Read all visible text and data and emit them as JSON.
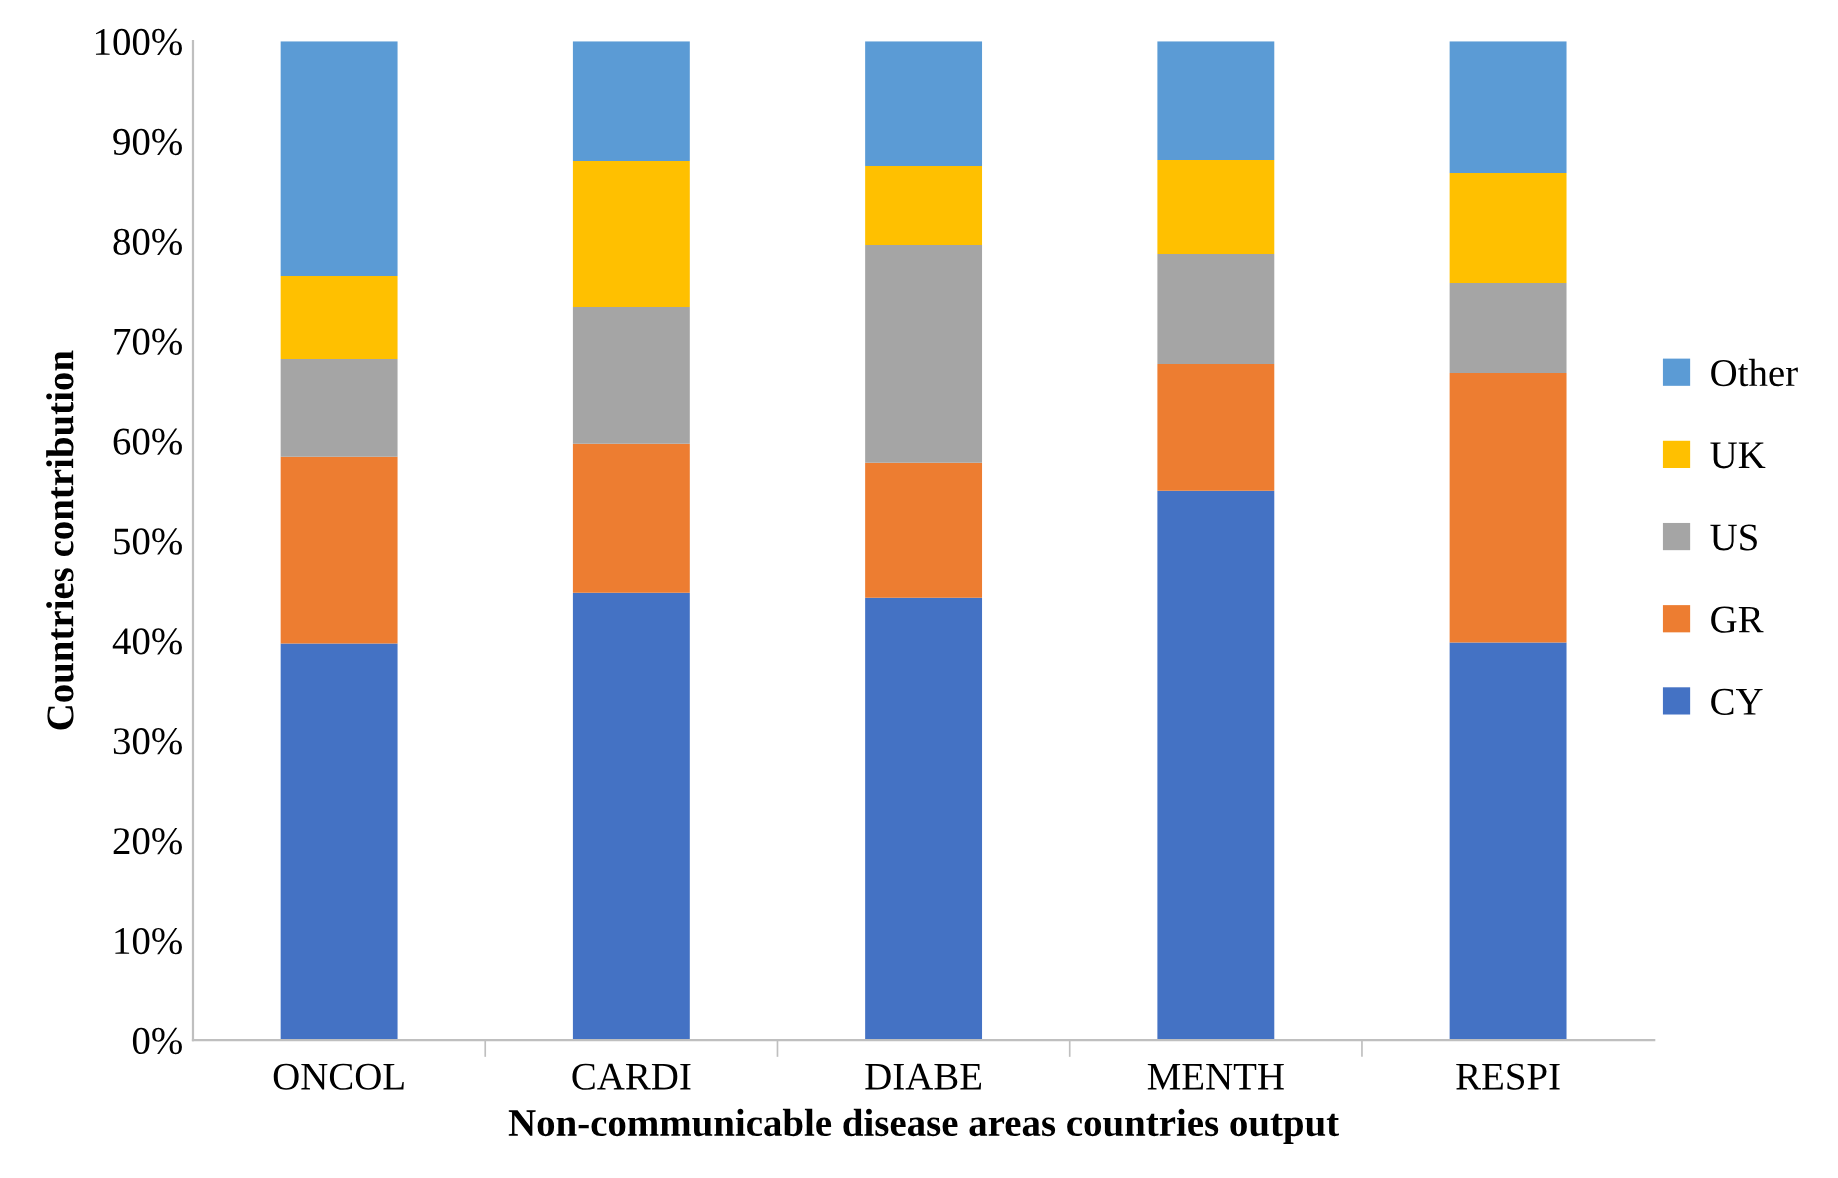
{
  "chart_data": {
    "type": "bar",
    "stacked": true,
    "xlabel": "Non-communicable disease areas countries output",
    "ylabel": "Countries contribution",
    "categories": [
      "ONCOL",
      "CARDI",
      "DIABE",
      "MENTH",
      "RESPI"
    ],
    "series": [
      {
        "name": "CY",
        "color": "#4472c4",
        "values": [
          39.7,
          44.8,
          44.3,
          55.0,
          39.8
        ]
      },
      {
        "name": "GR",
        "color": "#ed7d31",
        "values": [
          18.7,
          14.9,
          13.5,
          12.7,
          27.0
        ]
      },
      {
        "name": "US",
        "color": "#a5a5a5",
        "values": [
          9.8,
          13.7,
          21.8,
          11.0,
          9.0
        ]
      },
      {
        "name": "UK",
        "color": "#ffc000",
        "values": [
          8.3,
          14.6,
          7.9,
          9.4,
          11.0
        ]
      },
      {
        "name": "Other",
        "color": "#5b9bd5",
        "values": [
          23.5,
          12.0,
          12.5,
          11.9,
          13.2
        ]
      }
    ],
    "ylim": [
      0,
      100
    ],
    "yticks": [
      {
        "value": 0,
        "label": "0%"
      },
      {
        "value": 10,
        "label": "10%"
      },
      {
        "value": 20,
        "label": "20%"
      },
      {
        "value": 30,
        "label": "30%"
      },
      {
        "value": 40,
        "label": "40%"
      },
      {
        "value": 50,
        "label": "50%"
      },
      {
        "value": 60,
        "label": "60%"
      },
      {
        "value": 70,
        "label": "70%"
      },
      {
        "value": 80,
        "label": "80%"
      },
      {
        "value": 90,
        "label": "90%"
      },
      {
        "value": 100,
        "label": "100%"
      }
    ],
    "legend": "right",
    "grid": false
  }
}
